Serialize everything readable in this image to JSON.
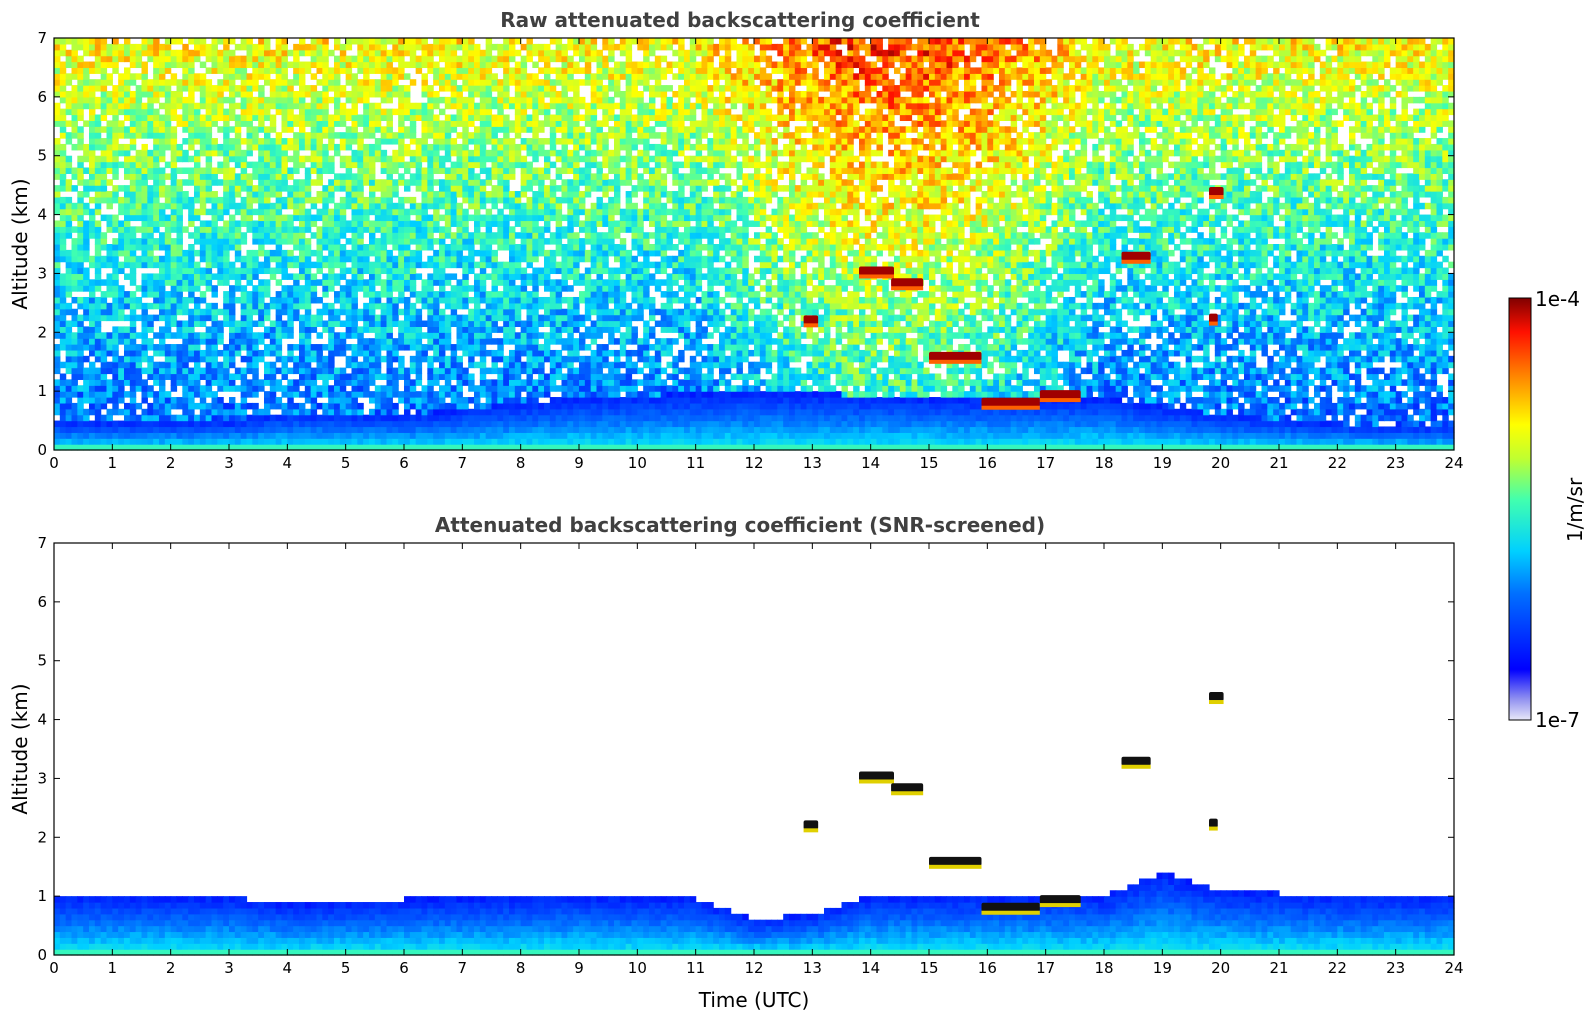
{
  "chart_data": [
    {
      "type": "heatmap",
      "title": "Raw attenuated backscattering coefficient",
      "xlabel": "",
      "ylabel": "Altitude (km)",
      "xlim": [
        0,
        24
      ],
      "ylim": [
        0,
        7
      ],
      "xticks": [
        "0",
        "1",
        "2",
        "3",
        "4",
        "5",
        "6",
        "7",
        "8",
        "9",
        "10",
        "11",
        "12",
        "13",
        "14",
        "15",
        "16",
        "17",
        "18",
        "19",
        "20",
        "21",
        "22",
        "23",
        "24"
      ],
      "yticks": [
        "0",
        "1",
        "2",
        "3",
        "4",
        "5",
        "6",
        "7"
      ],
      "boundary_layer_top_km": [
        [
          0,
          0.5
        ],
        [
          3,
          0.5
        ],
        [
          4,
          0.65
        ],
        [
          6,
          0.6
        ],
        [
          9,
          0.9
        ],
        [
          12,
          1.0
        ],
        [
          15,
          0.9
        ],
        [
          18,
          0.9
        ],
        [
          20,
          0.6
        ],
        [
          22,
          0.45
        ],
        [
          24,
          0.4
        ]
      ],
      "cloud_layers": [
        {
          "t0": 13.8,
          "t1": 14.4,
          "alt": 3.05
        },
        {
          "t0": 14.35,
          "t1": 14.9,
          "alt": 2.85
        },
        {
          "t0": 12.85,
          "t1": 13.1,
          "alt": 2.22
        },
        {
          "t0": 15.0,
          "t1": 15.9,
          "alt": 1.6
        },
        {
          "t0": 15.9,
          "t1": 16.9,
          "alt": 0.82
        },
        {
          "t0": 16.9,
          "t1": 17.6,
          "alt": 0.95
        },
        {
          "t0": 18.3,
          "t1": 18.8,
          "alt": 3.3
        },
        {
          "t0": 19.8,
          "t1": 20.05,
          "alt": 4.4
        },
        {
          "t0": 19.8,
          "t1": 19.95,
          "alt": 2.25
        }
      ]
    },
    {
      "type": "heatmap",
      "title": "Attenuated backscattering coefficient (SNR-screened)",
      "xlabel": "Time (UTC)",
      "ylabel": "Altitude (km)",
      "xlim": [
        0,
        24
      ],
      "ylim": [
        0,
        7
      ],
      "xticks": [
        "0",
        "1",
        "2",
        "3",
        "4",
        "5",
        "6",
        "7",
        "8",
        "9",
        "10",
        "11",
        "12",
        "13",
        "14",
        "15",
        "16",
        "17",
        "18",
        "19",
        "20",
        "21",
        "22",
        "23",
        "24"
      ],
      "yticks": [
        "0",
        "1",
        "2",
        "3",
        "4",
        "5",
        "6",
        "7"
      ],
      "screened_top_km": [
        [
          0,
          1.0
        ],
        [
          3,
          1.0
        ],
        [
          4,
          0.85
        ],
        [
          6,
          0.95
        ],
        [
          9,
          1.0
        ],
        [
          11,
          0.95
        ],
        [
          12,
          0.6
        ],
        [
          13,
          0.7
        ],
        [
          14,
          1.0
        ],
        [
          15,
          1.0
        ],
        [
          18,
          1.0
        ],
        [
          19,
          1.4
        ],
        [
          20,
          1.1
        ],
        [
          22,
          1.0
        ],
        [
          24,
          1.0
        ]
      ]
    }
  ],
  "colorbar": {
    "label": "1/m/sr",
    "max_label": "1e-4",
    "min_label": "1e-7",
    "colors": [
      "#e8e8f8",
      "#c0c0f0",
      "#8080f0",
      "#3030ff",
      "#0000ff",
      "#0050ff",
      "#00a0ff",
      "#00e0ff",
      "#40ffb0",
      "#a0ff40",
      "#ffff00",
      "#ffa000",
      "#ff3000",
      "#d00000",
      "#800000"
    ]
  }
}
